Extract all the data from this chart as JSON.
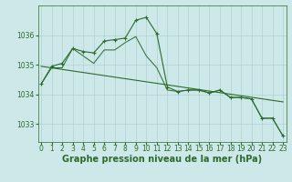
{
  "background_color": "#cce8e8",
  "grid_color": "#aacccc",
  "line_color": "#2d6a2d",
  "xlabel": "Graphe pression niveau de la mer (hPa)",
  "xlabel_fontsize": 7,
  "tick_fontsize": 5.5,
  "yticks": [
    1033,
    1034,
    1035,
    1036
  ],
  "ylim": [
    1032.4,
    1037.0
  ],
  "xlim": [
    -0.3,
    23.3
  ],
  "series_marked": {
    "x": [
      0,
      1,
      2,
      3,
      4,
      5,
      6,
      7,
      8,
      9,
      10,
      11,
      12,
      13,
      14,
      15,
      16,
      17,
      18,
      19,
      20,
      21,
      22,
      23
    ],
    "y": [
      1034.35,
      1034.95,
      1035.05,
      1035.55,
      1035.45,
      1035.4,
      1035.8,
      1035.85,
      1035.9,
      1036.5,
      1036.6,
      1036.05,
      1034.25,
      1034.1,
      1034.15,
      1034.15,
      1034.05,
      1034.15,
      1033.9,
      1033.9,
      1033.85,
      1033.2,
      1033.2,
      1032.6
    ]
  },
  "series_smooth": {
    "x": [
      0,
      1,
      2,
      3,
      4,
      5,
      6,
      7,
      8,
      9,
      10,
      11,
      12,
      13,
      14,
      15,
      16,
      17,
      18,
      19,
      20,
      21,
      22,
      23
    ],
    "y": [
      1034.35,
      1034.9,
      1034.9,
      1035.55,
      1035.3,
      1035.05,
      1035.5,
      1035.5,
      1035.75,
      1035.95,
      1035.3,
      1034.9,
      1034.15,
      1034.1,
      1034.15,
      1034.15,
      1034.05,
      1034.15,
      1033.9,
      1033.9,
      1033.85,
      1033.2,
      1033.2,
      1032.6
    ]
  },
  "trend": {
    "x": [
      0,
      23
    ],
    "y": [
      1034.95,
      1033.75
    ]
  }
}
